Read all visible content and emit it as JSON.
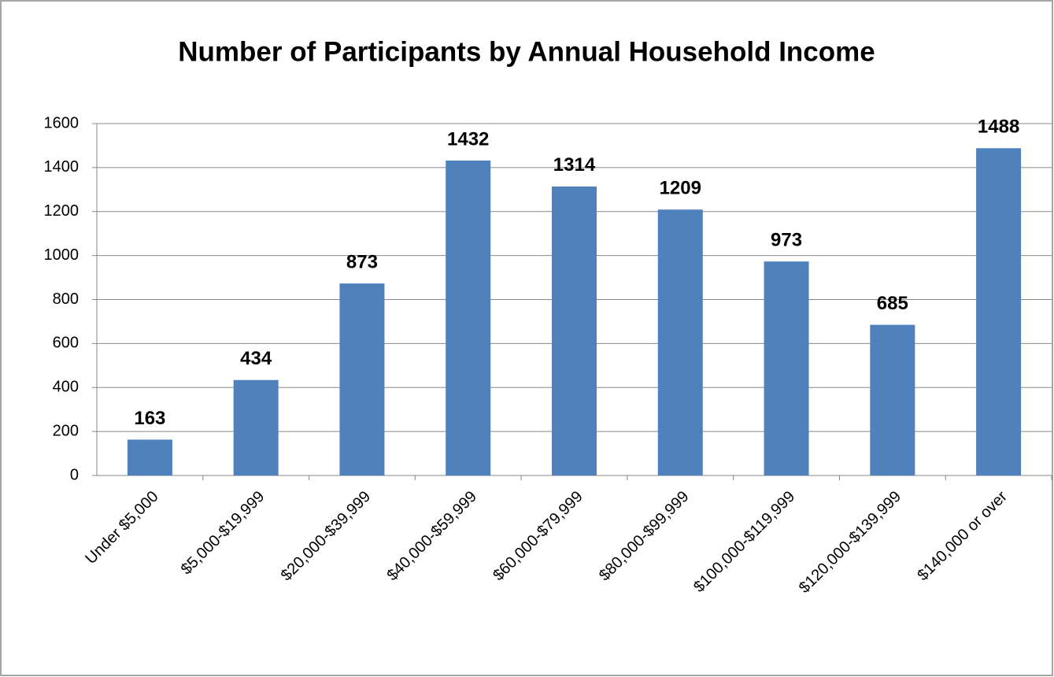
{
  "chart_data": {
    "type": "bar",
    "title": "Number of Participants by Annual Household Income",
    "categories": [
      "Under $5,000",
      "$5,000-$19,999",
      "$20,000-$39,999",
      "$40,000-$59,999",
      "$60,000-$79,999",
      "$80,000-$99,999",
      "$100,000-$119,999",
      "$120,000-$139,999",
      "$140,000 or over"
    ],
    "values": [
      163,
      434,
      873,
      1432,
      1314,
      1209,
      973,
      685,
      1488
    ],
    "color": "#4f81bd",
    "ylim": [
      0,
      1600
    ],
    "yticks": [
      0,
      200,
      400,
      600,
      800,
      1000,
      1200,
      1400,
      1600
    ],
    "grid": true
  }
}
